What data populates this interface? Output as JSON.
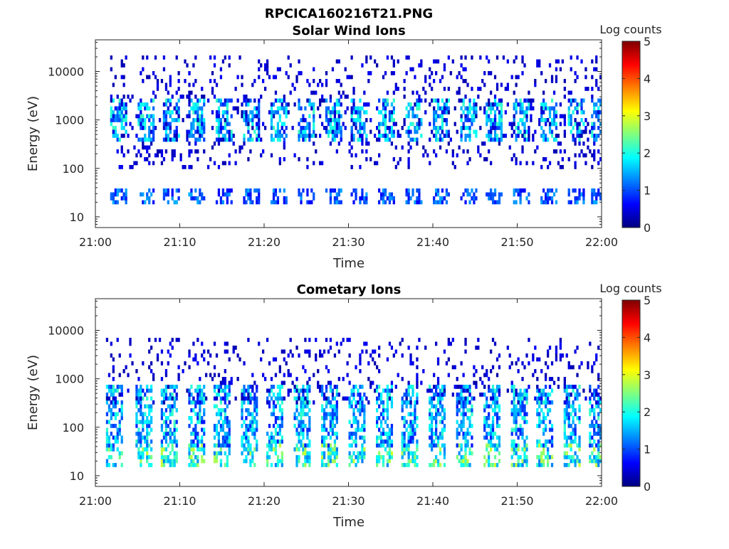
{
  "figure": {
    "title": "RPCICA160216T21.PNG"
  },
  "colorbar": {
    "label": "Log counts",
    "ticks": [
      "0",
      "1",
      "2",
      "3",
      "4",
      "5"
    ],
    "range": [
      0,
      5
    ],
    "colormap": "jet"
  },
  "chart_data": [
    {
      "type": "heatmap",
      "title": "Solar Wind Ions",
      "xlabel": "Time",
      "ylabel": "Energy (eV)",
      "y_scale": "log",
      "xlim": [
        "21:00",
        "22:00"
      ],
      "ylim": [
        6,
        45000
      ],
      "x_ticks": [
        "21:00",
        "21:10",
        "21:20",
        "21:30",
        "21:40",
        "21:50",
        "22:00"
      ],
      "y_ticks": [
        "10",
        "100",
        "1000",
        "10000"
      ],
      "y_tick_values": [
        10,
        100,
        1000,
        10000
      ],
      "sweep_starts_min": [
        2,
        5.2,
        8.3,
        11.3,
        14.6,
        17.8,
        21,
        24.2,
        27.4,
        30.6,
        33.8,
        37,
        40.2,
        43.4,
        46.6,
        49.8,
        53,
        56.2,
        59.1
      ],
      "bands": [
        {
          "energy_min": 20,
          "energy_max": 38,
          "level_min": 0.6,
          "level_max": 1.5,
          "description": "low-energy band"
        },
        {
          "energy_min": 400,
          "energy_max": 2500,
          "level_min": 0.8,
          "level_max": 2.2,
          "description": "solar wind proton peak"
        },
        {
          "energy_min": 100,
          "energy_max": 20000,
          "level_min": 0.2,
          "level_max": 0.6,
          "description": "scattered counts"
        }
      ]
    },
    {
      "type": "heatmap",
      "title": "Cometary Ions",
      "xlabel": "Time",
      "ylabel": "Energy (eV)",
      "y_scale": "log",
      "xlim": [
        "21:00",
        "22:00"
      ],
      "ylim": [
        6,
        45000
      ],
      "x_ticks": [
        "21:00",
        "21:10",
        "21:20",
        "21:30",
        "21:40",
        "21:50",
        "22:00"
      ],
      "y_ticks": [
        "10",
        "100",
        "1000",
        "10000"
      ],
      "y_tick_values": [
        10,
        100,
        1000,
        10000
      ],
      "sweep_starts_min": [
        1.5,
        5,
        8.1,
        11.2,
        14.3,
        17.5,
        20.6,
        23.8,
        27,
        30.2,
        33.4,
        36.6,
        39.8,
        43,
        46.2,
        49.4,
        52.6,
        55.8,
        58.8
      ],
      "bands": [
        {
          "energy_min": 16,
          "energy_max": 40,
          "level_min": 1.2,
          "level_max": 2.9,
          "description": "low-energy band"
        },
        {
          "energy_min": 40,
          "energy_max": 700,
          "level_min": 0.7,
          "level_max": 2.2,
          "description": "cometary ion column"
        },
        {
          "energy_min": 300,
          "energy_max": 6000,
          "level_min": 0.2,
          "level_max": 0.6,
          "description": "scattered counts"
        }
      ]
    }
  ]
}
